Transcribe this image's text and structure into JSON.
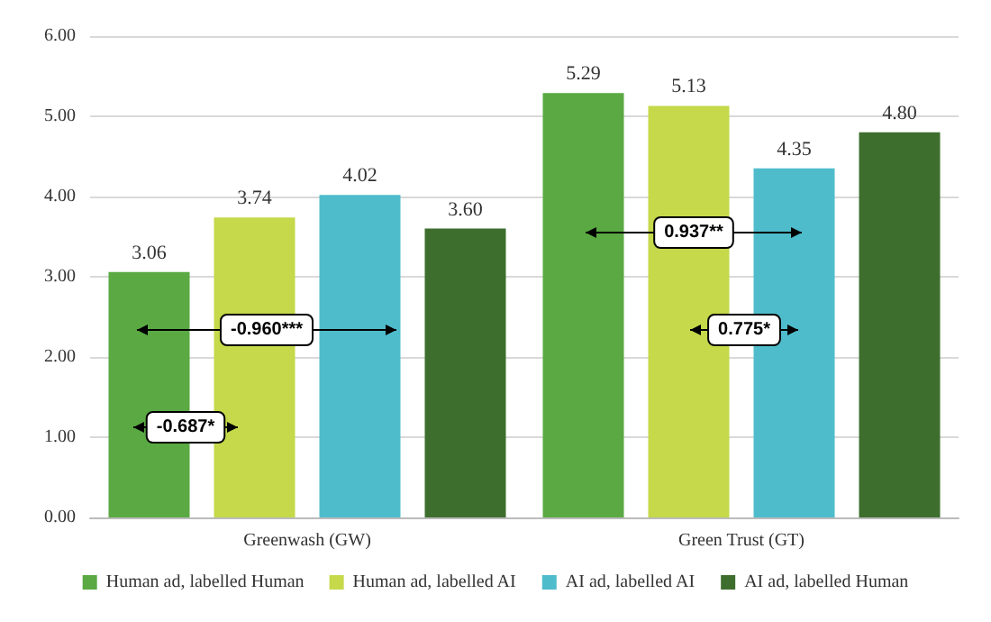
{
  "chart_data": {
    "type": "bar",
    "categories": [
      "Greenwash (GW)",
      "Green Trust (GT)"
    ],
    "series": [
      {
        "name": "Human ad, labelled Human",
        "color": "#5aa943",
        "values": [
          3.06,
          5.29
        ],
        "value_labels": [
          "3.06",
          "5.29"
        ]
      },
      {
        "name": "Human ad, labelled AI",
        "color": "#c5d94a",
        "values": [
          3.74,
          5.13
        ],
        "value_labels": [
          "3.74",
          "5.13"
        ]
      },
      {
        "name": "AI ad, labelled AI",
        "color": "#4fbccc",
        "values": [
          4.02,
          4.35
        ],
        "value_labels": [
          "4.02",
          "4.35"
        ]
      },
      {
        "name": "AI ad, labelled Human",
        "color": "#3d6e2d",
        "values": [
          3.6,
          4.8
        ],
        "value_labels": [
          "3.60",
          "4.80"
        ]
      }
    ],
    "ylim": [
      0,
      6
    ],
    "yticks": [
      {
        "value": 0,
        "label": "0.00"
      },
      {
        "value": 1,
        "label": "1.00"
      },
      {
        "value": 2,
        "label": "2.00"
      },
      {
        "value": 3,
        "label": "3.00"
      },
      {
        "value": 4,
        "label": "4.00"
      },
      {
        "value": 5,
        "label": "5.00"
      },
      {
        "value": 6,
        "label": "6.00"
      }
    ],
    "grid": "y",
    "legend": "bottom",
    "annotations": [
      "-0.960***",
      "-0.687*",
      "0.937**",
      "0.775*"
    ]
  }
}
